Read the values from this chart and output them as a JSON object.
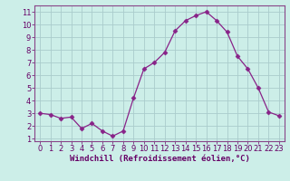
{
  "x": [
    0,
    1,
    2,
    3,
    4,
    5,
    6,
    7,
    8,
    9,
    10,
    11,
    12,
    13,
    14,
    15,
    16,
    17,
    18,
    19,
    20,
    21,
    22,
    23
  ],
  "y": [
    3.0,
    2.9,
    2.6,
    2.7,
    1.8,
    2.2,
    1.6,
    1.2,
    1.6,
    4.2,
    6.5,
    7.0,
    7.8,
    9.5,
    10.3,
    10.7,
    11.0,
    10.3,
    9.4,
    7.5,
    6.5,
    5.0,
    3.1,
    2.8
  ],
  "line_color": "#882288",
  "marker": "D",
  "marker_size": 2.5,
  "bg_color": "#cceee8",
  "grid_color": "#aacccc",
  "xlabel": "Windchill (Refroidissement éolien,°C)",
  "xlim": [
    -0.5,
    23.5
  ],
  "ylim": [
    0.8,
    11.5
  ],
  "yticks": [
    1,
    2,
    3,
    4,
    5,
    6,
    7,
    8,
    9,
    10,
    11
  ],
  "xticks": [
    0,
    1,
    2,
    3,
    4,
    5,
    6,
    7,
    8,
    9,
    10,
    11,
    12,
    13,
    14,
    15,
    16,
    17,
    18,
    19,
    20,
    21,
    22,
    23
  ],
  "label_fontsize": 6.5,
  "tick_fontsize": 6,
  "axis_color": "#660066",
  "label_color": "#660066",
  "spine_color": "#884488"
}
